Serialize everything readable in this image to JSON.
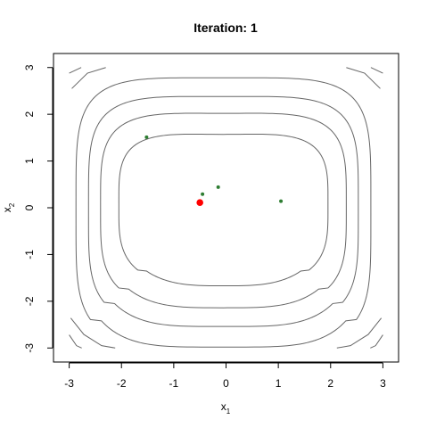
{
  "chart_data": {
    "type": "scatter",
    "title": "Iteration: 1",
    "xlabel": {
      "base": "x",
      "subscript": "1"
    },
    "ylabel": {
      "base": "x",
      "subscript": "2"
    },
    "xlim": [
      -3.3,
      3.3
    ],
    "ylim": [
      -3.3,
      3.3
    ],
    "x_ticks": [
      -3,
      -2,
      -1,
      0,
      1,
      2,
      3
    ],
    "y_ticks": [
      -3,
      -2,
      -1,
      0,
      1,
      2,
      3
    ],
    "x_tick_labels": [
      "-3",
      "-2",
      "-1",
      "0",
      "1",
      "2",
      "3"
    ],
    "y_tick_labels": [
      "-3",
      "-2",
      "-1",
      "0",
      "1",
      "2",
      "3"
    ],
    "grid": false,
    "background_contours": {
      "type": "contour",
      "color": "#666666",
      "description": "nested rounded-square-like contour curves, symmetric about x1=0, slightly higher/lower shape in x2"
    },
    "series": [
      {
        "color": "#2e7d32",
        "points": [
          {
            "x": -1.52,
            "y": 1.51
          },
          {
            "x": -0.45,
            "y": 0.29
          },
          {
            "x": -0.15,
            "y": 0.44
          },
          {
            "x": 1.05,
            "y": 0.14
          }
        ]
      },
      {
        "color": "#ff0000",
        "points": [
          {
            "x": -0.5,
            "y": 0.11
          }
        ]
      }
    ]
  }
}
